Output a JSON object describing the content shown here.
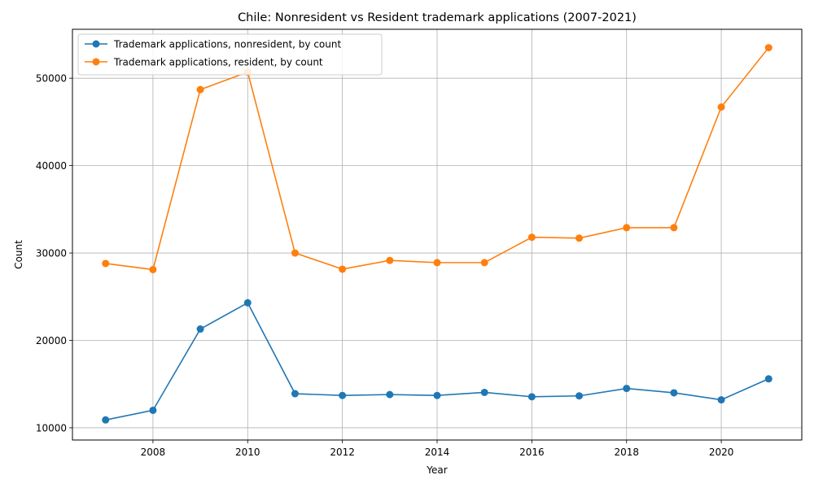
{
  "chart_data": {
    "type": "line",
    "title": "Chile: Nonresident vs Resident trademark applications (2007-2021)",
    "xlabel": "Year",
    "ylabel": "Count",
    "xlim": [
      2006.3,
      2021.7
    ],
    "ylim": [
      8600,
      55600
    ],
    "x_ticks": [
      2008,
      2010,
      2012,
      2014,
      2016,
      2018,
      2020
    ],
    "y_ticks": [
      10000,
      20000,
      30000,
      40000,
      50000
    ],
    "grid": true,
    "legend_position": "upper left",
    "x": [
      2007,
      2008,
      2009,
      2010,
      2011,
      2012,
      2013,
      2014,
      2015,
      2016,
      2017,
      2018,
      2019,
      2020,
      2021
    ],
    "series": [
      {
        "name": "Trademark applications, nonresident, by count",
        "color": "#1f77b4",
        "values": [
          10900,
          12000,
          21300,
          24300,
          13900,
          13700,
          13800,
          13700,
          14050,
          13550,
          13650,
          14500,
          14000,
          13200,
          15600
        ]
      },
      {
        "name": "Trademark applications, resident, by count",
        "color": "#ff7f0e",
        "values": [
          28800,
          28100,
          48700,
          50700,
          30000,
          28150,
          29150,
          28900,
          28900,
          31800,
          31700,
          32900,
          32900,
          46700,
          53500
        ]
      }
    ]
  }
}
